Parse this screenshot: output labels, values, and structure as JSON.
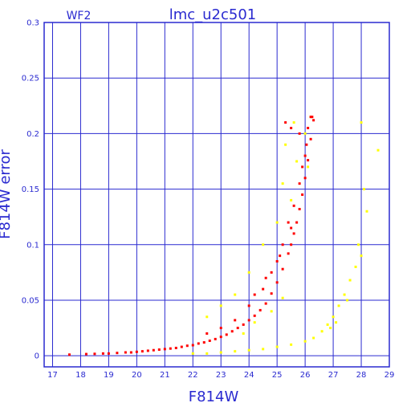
{
  "chart_data": {
    "type": "scatter",
    "title": "lmc_u2c501",
    "subtitle": "WF2",
    "xlabel": "F814W",
    "ylabel": "F814W error",
    "xlim": [
      16.7,
      29.0
    ],
    "ylim": [
      -0.01,
      0.3
    ],
    "xticks": [
      "17",
      "18",
      "19",
      "20",
      "21",
      "22",
      "23",
      "24",
      "25",
      "26",
      "27",
      "28",
      "29"
    ],
    "yticks": [
      "0",
      "0.05",
      "0.1",
      "0.15",
      "0.2",
      "0.25",
      "0.3"
    ],
    "grid": true,
    "colors": {
      "axis": "#2a2ad0",
      "grid": "#2a2ad0",
      "red_series": "#ff0000",
      "yellow_series": "#ffff00"
    },
    "series": [
      {
        "color": "red",
        "points": [
          [
            17.6,
            0.001
          ],
          [
            18.2,
            0.0015
          ],
          [
            18.5,
            0.0017
          ],
          [
            18.8,
            0.002
          ],
          [
            19.0,
            0.002
          ],
          [
            19.3,
            0.0025
          ],
          [
            19.6,
            0.003
          ],
          [
            19.8,
            0.003
          ],
          [
            20.0,
            0.0035
          ],
          [
            20.2,
            0.004
          ],
          [
            20.4,
            0.0045
          ],
          [
            20.6,
            0.005
          ],
          [
            20.8,
            0.0055
          ],
          [
            21.0,
            0.006
          ],
          [
            21.2,
            0.0065
          ],
          [
            21.4,
            0.007
          ],
          [
            21.6,
            0.008
          ],
          [
            21.8,
            0.009
          ],
          [
            22.0,
            0.0095
          ],
          [
            22.2,
            0.011
          ],
          [
            22.4,
            0.012
          ],
          [
            22.6,
            0.0135
          ],
          [
            22.8,
            0.015
          ],
          [
            23.0,
            0.017
          ],
          [
            23.2,
            0.019
          ],
          [
            23.4,
            0.022
          ],
          [
            23.6,
            0.025
          ],
          [
            23.8,
            0.028
          ],
          [
            24.0,
            0.032
          ],
          [
            24.2,
            0.036
          ],
          [
            24.4,
            0.041
          ],
          [
            24.6,
            0.047
          ],
          [
            24.8,
            0.056
          ],
          [
            25.0,
            0.066
          ],
          [
            25.2,
            0.078
          ],
          [
            25.4,
            0.092
          ],
          [
            25.5,
            0.1
          ],
          [
            25.6,
            0.11
          ],
          [
            25.7,
            0.12
          ],
          [
            25.8,
            0.132
          ],
          [
            25.9,
            0.145
          ],
          [
            26.0,
            0.16
          ],
          [
            26.1,
            0.176
          ],
          [
            26.2,
            0.195
          ],
          [
            26.3,
            0.212
          ],
          [
            23.0,
            0.025
          ],
          [
            23.5,
            0.032
          ],
          [
            24.0,
            0.045
          ],
          [
            24.5,
            0.06
          ],
          [
            24.8,
            0.075
          ],
          [
            25.0,
            0.085
          ],
          [
            25.2,
            0.1
          ],
          [
            25.4,
            0.12
          ],
          [
            25.6,
            0.135
          ],
          [
            25.8,
            0.155
          ],
          [
            26.0,
            0.18
          ],
          [
            26.1,
            0.205
          ],
          [
            25.3,
            0.21
          ],
          [
            25.5,
            0.205
          ],
          [
            25.8,
            0.2
          ],
          [
            26.2,
            0.215
          ],
          [
            22.5,
            0.02
          ],
          [
            24.2,
            0.055
          ],
          [
            24.6,
            0.07
          ],
          [
            25.1,
            0.09
          ],
          [
            25.5,
            0.115
          ],
          [
            25.9,
            0.17
          ],
          [
            26.25,
            0.215
          ],
          [
            26.05,
            0.19
          ]
        ]
      },
      {
        "color": "yellow",
        "points": [
          [
            22.0,
            0.002
          ],
          [
            22.5,
            0.002
          ],
          [
            23.0,
            0.003
          ],
          [
            23.5,
            0.004
          ],
          [
            24.0,
            0.005
          ],
          [
            24.5,
            0.006
          ],
          [
            25.0,
            0.008
          ],
          [
            25.5,
            0.01
          ],
          [
            26.0,
            0.013
          ],
          [
            26.3,
            0.016
          ],
          [
            26.6,
            0.022
          ],
          [
            26.8,
            0.028
          ],
          [
            27.0,
            0.035
          ],
          [
            27.2,
            0.045
          ],
          [
            27.4,
            0.055
          ],
          [
            27.6,
            0.068
          ],
          [
            27.8,
            0.08
          ],
          [
            28.0,
            0.09
          ],
          [
            28.2,
            0.13
          ],
          [
            28.6,
            0.185
          ],
          [
            28.0,
            0.21
          ],
          [
            24.0,
            0.075
          ],
          [
            23.5,
            0.055
          ],
          [
            23.0,
            0.045
          ],
          [
            22.5,
            0.035
          ],
          [
            24.5,
            0.1
          ],
          [
            25.0,
            0.12
          ],
          [
            25.5,
            0.14
          ],
          [
            25.3,
            0.19
          ],
          [
            25.2,
            0.155
          ],
          [
            25.7,
            0.175
          ],
          [
            26.0,
            0.2
          ],
          [
            26.1,
            0.17
          ],
          [
            26.2,
            0.215
          ],
          [
            25.6,
            0.21
          ],
          [
            23.8,
            0.02
          ],
          [
            24.2,
            0.03
          ],
          [
            24.8,
            0.04
          ],
          [
            25.2,
            0.052
          ],
          [
            27.1,
            0.03
          ],
          [
            26.9,
            0.025
          ],
          [
            27.5,
            0.05
          ],
          [
            27.9,
            0.1
          ],
          [
            28.1,
            0.15
          ]
        ]
      }
    ]
  }
}
